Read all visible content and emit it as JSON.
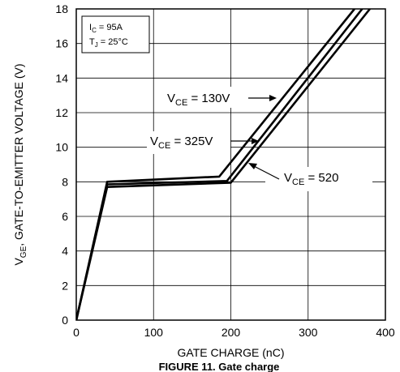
{
  "chart_data": {
    "type": "line",
    "xlabel": "GATE CHARGE (nC)",
    "ylabel": {
      "main": "V",
      "sub": "GE",
      "rest": ", GATE-TO-EMITTER VOLTAGE (V)"
    },
    "caption": "FIGURE 11. Gate charge",
    "xlim": [
      0,
      400
    ],
    "ylim": [
      0,
      18
    ],
    "xticks": [
      "0",
      "100",
      "200",
      "300",
      "400"
    ],
    "yticks": [
      "0",
      "2",
      "4",
      "6",
      "8",
      "10",
      "12",
      "14",
      "16",
      "18"
    ],
    "grid": true,
    "conditions": {
      "ic": {
        "main": "I",
        "sub": "C",
        "rest": " = 95A"
      },
      "tj": {
        "main": "T",
        "sub": "J",
        "rest": " = 25°C"
      }
    },
    "series": [
      {
        "name": "V_CE = 130V",
        "label": {
          "main": "V",
          "sub": "CE",
          "rest": " = 130V"
        },
        "points": [
          [
            0,
            0
          ],
          [
            40,
            8.0
          ],
          [
            185,
            8.3
          ],
          [
            360,
            18
          ]
        ]
      },
      {
        "name": "V_CE = 325V",
        "label": {
          "main": "V",
          "sub": "CE",
          "rest": " = 325V"
        },
        "points": [
          [
            0,
            0
          ],
          [
            40,
            7.85
          ],
          [
            195,
            8.05
          ],
          [
            370,
            18
          ]
        ]
      },
      {
        "name": "V_CE = 520",
        "label": {
          "main": "V",
          "sub": "CE",
          "rest": " = 520"
        },
        "points": [
          [
            0,
            0
          ],
          [
            40,
            7.7
          ],
          [
            200,
            7.95
          ],
          [
            380,
            18
          ]
        ]
      }
    ]
  }
}
